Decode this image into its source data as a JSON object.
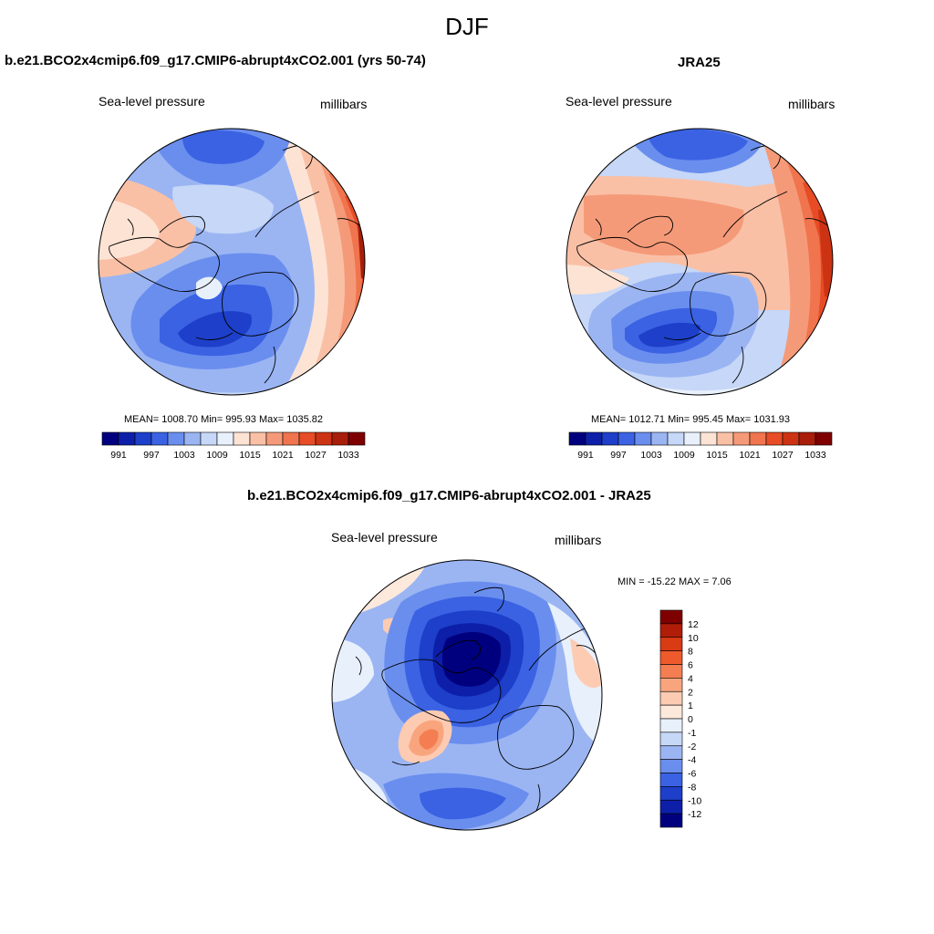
{
  "figure_title": "DJF",
  "panels": [
    {
      "title": "b.e21.BCO2x4cmip6.f09_g17.CMIP6-abrupt4xCO2.001 (yrs 50-74)",
      "left_label": "Sea-level pressure",
      "right_label": "millibars",
      "stats": "MEAN= 1008.70  Min= 995.93  Max= 1035.82",
      "colorbar_ticks": [
        "991",
        "997",
        "1003",
        "1009",
        "1015",
        "1021",
        "1027",
        "1033"
      ]
    },
    {
      "title": "JRA25",
      "left_label": "Sea-level pressure",
      "right_label": "millibars",
      "stats": "MEAN= 1012.71  Min= 995.45  Max= 1031.93",
      "colorbar_ticks": [
        "991",
        "997",
        "1003",
        "1009",
        "1015",
        "1021",
        "1027",
        "1033"
      ]
    },
    {
      "title": "b.e21.BCO2x4cmip6.f09_g17.CMIP6-abrupt4xCO2.001 - JRA25",
      "left_label": "Sea-level pressure",
      "right_label": "millibars",
      "stats": "MIN = -15.22 MAX =   7.06",
      "colorbar_ticks": [
        "12",
        "10",
        "8",
        "6",
        "4",
        "2",
        "1",
        "0",
        "-1",
        "-2",
        "-4",
        "-6",
        "-8",
        "-10",
        "-12"
      ]
    }
  ],
  "colors": {
    "abs_scale": [
      "#00007f",
      "#0d1fa8",
      "#1d3fc9",
      "#3a62e3",
      "#6a8eee",
      "#9bb5f3",
      "#c6d7f7",
      "#e8f0fc",
      "#fde3d4",
      "#f9c0a6",
      "#f59a78",
      "#f0744e",
      "#e74c26",
      "#cc3313",
      "#a81e0a",
      "#7f0000"
    ],
    "diff_scale": [
      "#7f0000",
      "#b01d08",
      "#d93b14",
      "#ee5a2c",
      "#f47e52",
      "#f8a57e",
      "#fccbb2",
      "#fde8dc",
      "#e8f0fc",
      "#c6d7f7",
      "#9bb5f3",
      "#6a8eee",
      "#3a62e3",
      "#1d3fc9",
      "#0d1fa8",
      "#00007f"
    ]
  }
}
